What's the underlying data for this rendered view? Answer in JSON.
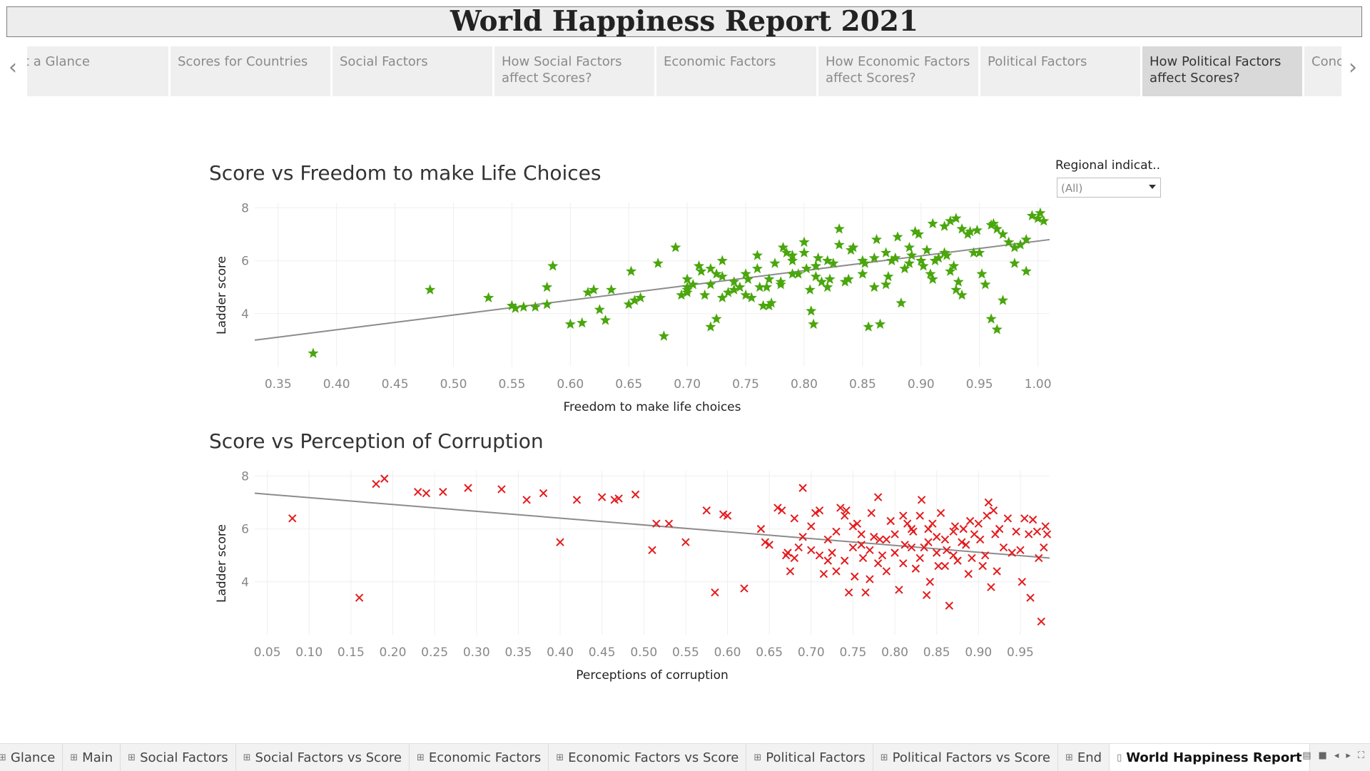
{
  "title": "World Happiness Report 2021",
  "nav": {
    "prev_icon": "chevron-left-icon",
    "next_icon": "chevron-right-icon",
    "tabs": [
      {
        "label": "At a Glance"
      },
      {
        "label": "Scores for Countries"
      },
      {
        "label": "Social Factors"
      },
      {
        "label": "How Social Factors affect Scores?"
      },
      {
        "label": "Economic Factors"
      },
      {
        "label": "How Economic Factors affect Scores?"
      },
      {
        "label": "Political Factors"
      },
      {
        "label": "How Political Factors affect Scores?",
        "active": true
      },
      {
        "label": "Conclusion"
      }
    ]
  },
  "filter": {
    "label": "Regional indicat..",
    "value": "(All)"
  },
  "chart_data": [
    {
      "type": "scatter",
      "title": "Score vs Freedom to make Life Choices",
      "xlabel": "Freedom to make life choices",
      "ylabel": "Ladder score",
      "xlim": [
        0.33,
        1.01
      ],
      "ylim": [
        2.0,
        8.2
      ],
      "xticks": [
        "0.35",
        "0.40",
        "0.45",
        "0.50",
        "0.55",
        "0.60",
        "0.65",
        "0.70",
        "0.75",
        "0.80",
        "0.85",
        "0.90",
        "0.95",
        "1.00"
      ],
      "yticks": [
        "4",
        "6",
        "8"
      ],
      "marker": "star",
      "color": "#4aa60d",
      "trend": {
        "x": [
          0.33,
          1.01
        ],
        "y": [
          3.0,
          6.8
        ]
      },
      "grid": true,
      "points": [
        [
          0.38,
          2.5
        ],
        [
          0.48,
          4.9
        ],
        [
          0.53,
          4.6
        ],
        [
          0.55,
          4.3
        ],
        [
          0.553,
          4.2
        ],
        [
          0.56,
          4.25
        ],
        [
          0.57,
          4.25
        ],
        [
          0.58,
          4.35
        ],
        [
          0.585,
          5.8
        ],
        [
          0.58,
          5.0
        ],
        [
          0.6,
          3.6
        ],
        [
          0.61,
          3.65
        ],
        [
          0.615,
          4.8
        ],
        [
          0.62,
          4.9
        ],
        [
          0.625,
          4.15
        ],
        [
          0.63,
          3.75
        ],
        [
          0.635,
          4.9
        ],
        [
          0.65,
          4.35
        ],
        [
          0.655,
          4.5
        ],
        [
          0.66,
          4.6
        ],
        [
          0.652,
          5.6
        ],
        [
          0.675,
          5.9
        ],
        [
          0.68,
          3.15
        ],
        [
          0.69,
          6.5
        ],
        [
          0.695,
          4.7
        ],
        [
          0.7,
          5.3
        ],
        [
          0.7,
          5.0
        ],
        [
          0.7,
          4.9
        ],
        [
          0.7,
          4.8
        ],
        [
          0.705,
          5.1
        ],
        [
          0.71,
          5.8
        ],
        [
          0.712,
          5.6
        ],
        [
          0.715,
          4.7
        ],
        [
          0.72,
          5.7
        ],
        [
          0.72,
          3.5
        ],
        [
          0.725,
          3.8
        ],
        [
          0.725,
          5.5
        ],
        [
          0.73,
          6.0
        ],
        [
          0.73,
          4.6
        ],
        [
          0.735,
          4.8
        ],
        [
          0.74,
          4.9
        ],
        [
          0.745,
          5.0
        ],
        [
          0.75,
          4.7
        ],
        [
          0.752,
          5.3
        ],
        [
          0.755,
          4.6
        ],
        [
          0.76,
          6.2
        ],
        [
          0.762,
          5.0
        ],
        [
          0.765,
          4.3
        ],
        [
          0.768,
          5.0
        ],
        [
          0.77,
          4.3
        ],
        [
          0.772,
          4.4
        ],
        [
          0.775,
          5.9
        ],
        [
          0.78,
          5.2
        ],
        [
          0.782,
          6.5
        ],
        [
          0.785,
          6.3
        ],
        [
          0.79,
          6.0
        ],
        [
          0.79,
          6.2
        ],
        [
          0.795,
          5.5
        ],
        [
          0.8,
          6.3
        ],
        [
          0.8,
          6.7
        ],
        [
          0.802,
          5.7
        ],
        [
          0.805,
          4.9
        ],
        [
          0.806,
          4.1
        ],
        [
          0.808,
          3.6
        ],
        [
          0.81,
          5.4
        ],
        [
          0.812,
          6.1
        ],
        [
          0.815,
          5.2
        ],
        [
          0.82,
          5.0
        ],
        [
          0.822,
          5.3
        ],
        [
          0.825,
          5.9
        ],
        [
          0.83,
          7.2
        ],
        [
          0.835,
          5.2
        ],
        [
          0.838,
          5.3
        ],
        [
          0.842,
          6.5
        ],
        [
          0.85,
          5.5
        ],
        [
          0.852,
          5.9
        ],
        [
          0.855,
          3.5
        ],
        [
          0.86,
          5.0
        ],
        [
          0.862,
          6.8
        ],
        [
          0.865,
          3.6
        ],
        [
          0.87,
          5.1
        ],
        [
          0.872,
          5.4
        ],
        [
          0.875,
          6.0
        ],
        [
          0.878,
          6.1
        ],
        [
          0.88,
          6.9
        ],
        [
          0.883,
          4.4
        ],
        [
          0.886,
          5.7
        ],
        [
          0.89,
          5.9
        ],
        [
          0.892,
          6.2
        ],
        [
          0.895,
          7.1
        ],
        [
          0.898,
          7.0
        ],
        [
          0.9,
          6.0
        ],
        [
          0.902,
          5.8
        ],
        [
          0.905,
          6.4
        ],
        [
          0.908,
          5.5
        ],
        [
          0.91,
          5.3
        ],
        [
          0.912,
          6.0
        ],
        [
          0.915,
          6.1
        ],
        [
          0.92,
          6.3
        ],
        [
          0.922,
          6.2
        ],
        [
          0.925,
          5.6
        ],
        [
          0.928,
          5.8
        ],
        [
          0.93,
          4.9
        ],
        [
          0.932,
          5.2
        ],
        [
          0.935,
          7.2
        ],
        [
          0.935,
          4.7
        ],
        [
          0.94,
          7.0
        ],
        [
          0.942,
          7.1
        ],
        [
          0.945,
          6.3
        ],
        [
          0.948,
          7.15
        ],
        [
          0.95,
          6.3
        ],
        [
          0.952,
          5.5
        ],
        [
          0.955,
          5.1
        ],
        [
          0.96,
          7.35
        ],
        [
          0.962,
          7.4
        ],
        [
          0.965,
          7.2
        ],
        [
          0.97,
          7.0
        ],
        [
          0.975,
          6.7
        ],
        [
          0.98,
          6.5
        ],
        [
          0.985,
          6.6
        ],
        [
          0.99,
          5.6
        ],
        [
          0.995,
          7.7
        ],
        [
          1.0,
          7.6
        ],
        [
          1.002,
          7.8
        ],
        [
          1.005,
          7.5
        ],
        [
          0.99,
          6.8
        ],
        [
          0.98,
          5.9
        ],
        [
          0.97,
          4.5
        ],
        [
          0.96,
          3.8
        ],
        [
          0.965,
          3.4
        ],
        [
          0.91,
          7.4
        ],
        [
          0.92,
          7.3
        ],
        [
          0.925,
          7.5
        ],
        [
          0.93,
          7.6
        ],
        [
          0.89,
          6.5
        ],
        [
          0.87,
          6.3
        ],
        [
          0.86,
          6.1
        ],
        [
          0.85,
          6.0
        ],
        [
          0.84,
          6.4
        ],
        [
          0.83,
          6.6
        ],
        [
          0.82,
          6.0
        ],
        [
          0.81,
          5.8
        ],
        [
          0.79,
          5.5
        ],
        [
          0.78,
          5.1
        ],
        [
          0.77,
          5.3
        ],
        [
          0.76,
          5.7
        ],
        [
          0.75,
          5.5
        ],
        [
          0.74,
          5.2
        ],
        [
          0.73,
          5.4
        ],
        [
          0.72,
          5.1
        ]
      ]
    },
    {
      "type": "scatter",
      "title": "Score vs Perception of Corruption",
      "xlabel": "Perceptions of corruption",
      "ylabel": "Ladder score",
      "xlim": [
        0.035,
        0.985
      ],
      "ylim": [
        2.0,
        8.2
      ],
      "xticks": [
        "0.05",
        "0.10",
        "0.15",
        "0.20",
        "0.25",
        "0.30",
        "0.35",
        "0.40",
        "0.45",
        "0.50",
        "0.55",
        "0.60",
        "0.65",
        "0.70",
        "0.75",
        "0.80",
        "0.85",
        "0.90",
        "0.95"
      ],
      "yticks": [
        "4",
        "6",
        "8"
      ],
      "marker": "x",
      "color": "#e41a1c",
      "trend": {
        "x": [
          0.035,
          0.985
        ],
        "y": [
          7.35,
          4.9
        ]
      },
      "grid": true,
      "points": [
        [
          0.08,
          6.4
        ],
        [
          0.16,
          3.4
        ],
        [
          0.18,
          7.7
        ],
        [
          0.19,
          7.9
        ],
        [
          0.23,
          7.4
        ],
        [
          0.24,
          7.35
        ],
        [
          0.26,
          7.4
        ],
        [
          0.29,
          7.55
        ],
        [
          0.33,
          7.5
        ],
        [
          0.36,
          7.1
        ],
        [
          0.38,
          7.35
        ],
        [
          0.4,
          5.5
        ],
        [
          0.42,
          7.1
        ],
        [
          0.45,
          7.2
        ],
        [
          0.465,
          7.1
        ],
        [
          0.47,
          7.15
        ],
        [
          0.49,
          7.3
        ],
        [
          0.51,
          5.2
        ],
        [
          0.515,
          6.2
        ],
        [
          0.53,
          6.2
        ],
        [
          0.55,
          5.5
        ],
        [
          0.575,
          6.7
        ],
        [
          0.585,
          3.6
        ],
        [
          0.595,
          6.55
        ],
        [
          0.6,
          6.5
        ],
        [
          0.62,
          3.75
        ],
        [
          0.64,
          6.0
        ],
        [
          0.645,
          5.5
        ],
        [
          0.65,
          5.4
        ],
        [
          0.66,
          6.8
        ],
        [
          0.665,
          6.7
        ],
        [
          0.67,
          5.0
        ],
        [
          0.672,
          5.1
        ],
        [
          0.675,
          4.4
        ],
        [
          0.68,
          6.4
        ],
        [
          0.685,
          5.3
        ],
        [
          0.69,
          7.55
        ],
        [
          0.7,
          6.1
        ],
        [
          0.705,
          6.6
        ],
        [
          0.71,
          5.0
        ],
        [
          0.715,
          4.3
        ],
        [
          0.72,
          4.8
        ],
        [
          0.725,
          5.1
        ],
        [
          0.73,
          4.4
        ],
        [
          0.735,
          6.8
        ],
        [
          0.74,
          6.5
        ],
        [
          0.742,
          6.7
        ],
        [
          0.745,
          3.6
        ],
        [
          0.75,
          6.1
        ],
        [
          0.752,
          4.2
        ],
        [
          0.755,
          6.2
        ],
        [
          0.76,
          5.4
        ],
        [
          0.762,
          4.9
        ],
        [
          0.765,
          3.6
        ],
        [
          0.77,
          5.2
        ],
        [
          0.772,
          6.6
        ],
        [
          0.775,
          5.7
        ],
        [
          0.78,
          7.2
        ],
        [
          0.782,
          5.6
        ],
        [
          0.785,
          5.0
        ],
        [
          0.79,
          4.4
        ],
        [
          0.795,
          6.3
        ],
        [
          0.8,
          5.8
        ],
        [
          0.805,
          3.7
        ],
        [
          0.81,
          6.5
        ],
        [
          0.812,
          5.4
        ],
        [
          0.815,
          6.2
        ],
        [
          0.82,
          6.0
        ],
        [
          0.822,
          5.9
        ],
        [
          0.825,
          4.5
        ],
        [
          0.83,
          6.5
        ],
        [
          0.832,
          7.1
        ],
        [
          0.835,
          5.3
        ],
        [
          0.838,
          3.5
        ],
        [
          0.84,
          6.0
        ],
        [
          0.842,
          4.0
        ],
        [
          0.845,
          6.2
        ],
        [
          0.85,
          5.1
        ],
        [
          0.852,
          4.6
        ],
        [
          0.855,
          6.6
        ],
        [
          0.86,
          5.6
        ],
        [
          0.862,
          5.2
        ],
        [
          0.865,
          3.1
        ],
        [
          0.87,
          5.9
        ],
        [
          0.872,
          6.1
        ],
        [
          0.875,
          4.8
        ],
        [
          0.88,
          5.5
        ],
        [
          0.882,
          6.0
        ],
        [
          0.885,
          5.4
        ],
        [
          0.888,
          4.3
        ],
        [
          0.89,
          6.3
        ],
        [
          0.892,
          4.9
        ],
        [
          0.895,
          5.8
        ],
        [
          0.9,
          6.2
        ],
        [
          0.902,
          5.6
        ],
        [
          0.905,
          4.6
        ],
        [
          0.908,
          5.0
        ],
        [
          0.91,
          6.5
        ],
        [
          0.912,
          7.0
        ],
        [
          0.915,
          3.8
        ],
        [
          0.918,
          6.7
        ],
        [
          0.92,
          5.8
        ],
        [
          0.922,
          4.4
        ],
        [
          0.925,
          6.0
        ],
        [
          0.93,
          5.3
        ],
        [
          0.935,
          6.4
        ],
        [
          0.94,
          5.1
        ],
        [
          0.945,
          5.9
        ],
        [
          0.95,
          5.2
        ],
        [
          0.952,
          4.0
        ],
        [
          0.955,
          6.4
        ],
        [
          0.96,
          5.8
        ],
        [
          0.962,
          3.4
        ],
        [
          0.965,
          6.35
        ],
        [
          0.97,
          5.9
        ],
        [
          0.972,
          4.9
        ],
        [
          0.975,
          2.5
        ],
        [
          0.978,
          5.3
        ],
        [
          0.98,
          6.1
        ],
        [
          0.982,
          5.8
        ],
        [
          0.87,
          5.0
        ],
        [
          0.86,
          4.6
        ],
        [
          0.85,
          5.7
        ],
        [
          0.84,
          5.5
        ],
        [
          0.83,
          4.9
        ],
        [
          0.82,
          5.3
        ],
        [
          0.81,
          4.7
        ],
        [
          0.8,
          5.1
        ],
        [
          0.79,
          5.6
        ],
        [
          0.78,
          4.7
        ],
        [
          0.77,
          4.1
        ],
        [
          0.76,
          5.8
        ],
        [
          0.75,
          5.3
        ],
        [
          0.74,
          4.8
        ],
        [
          0.73,
          5.9
        ],
        [
          0.72,
          5.6
        ],
        [
          0.71,
          6.7
        ],
        [
          0.7,
          5.2
        ],
        [
          0.69,
          5.7
        ],
        [
          0.68,
          4.9
        ]
      ]
    }
  ],
  "sheet_tabs": [
    {
      "label": "Glance",
      "icon": "grid-icon"
    },
    {
      "label": "Main",
      "icon": "grid-icon"
    },
    {
      "label": "Social Factors",
      "icon": "grid-icon"
    },
    {
      "label": "Social Factors vs Score",
      "icon": "grid-icon"
    },
    {
      "label": "Economic Factors",
      "icon": "grid-icon"
    },
    {
      "label": "Economic Factors vs Score",
      "icon": "grid-icon"
    },
    {
      "label": "Political Factors",
      "icon": "grid-icon"
    },
    {
      "label": "Political Factors vs Score",
      "icon": "grid-icon"
    },
    {
      "label": "End",
      "icon": "grid-icon"
    },
    {
      "label": "World Happiness Report",
      "icon": "story-icon",
      "active": true
    }
  ]
}
